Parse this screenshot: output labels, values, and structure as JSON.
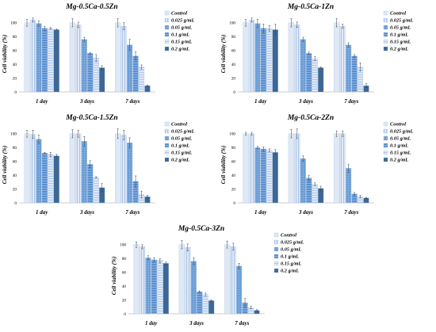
{
  "figure": {
    "series_names": [
      "Control",
      "0.025 g/mL",
      "0.05 g/mL",
      "0.1 g/mL",
      "0.15 g/mL",
      "0.2 g/mL"
    ],
    "series_colors": [
      "#dfe8f5",
      "#dfe8f5",
      "#6e9fd6",
      "#5b8fce",
      "#dfe8f5",
      "#3c6796"
    ],
    "series_patterns": [
      "solid",
      "vstripe",
      "dots",
      "hstripe",
      "hstripe",
      "solid"
    ],
    "error_bar_color": "#404040",
    "axis_color": "#bfbfbf"
  },
  "chart_data": [
    {
      "type": "bar",
      "title": "Mg-0.5Ca-0.5Zn",
      "ylabel": "Cell viability (%)",
      "yticks": [
        "0",
        "20",
        "40",
        "60",
        "80",
        "100"
      ],
      "ylim": [
        0,
        110
      ],
      "categories": [
        "1 day",
        "3 days",
        "7 days"
      ],
      "series": [
        {
          "name": "Control",
          "values": [
            100,
            100,
            100
          ],
          "errors": [
            5,
            6,
            6
          ]
        },
        {
          "name": "0.025 g/mL",
          "values": [
            104,
            97,
            95
          ],
          "errors": [
            3,
            4,
            5
          ]
        },
        {
          "name": "0.05 g/mL",
          "values": [
            99,
            76,
            68
          ],
          "errors": [
            4,
            3,
            8
          ]
        },
        {
          "name": "0.1 g/mL",
          "values": [
            92,
            56,
            52
          ],
          "errors": [
            3,
            1,
            6
          ]
        },
        {
          "name": "0.15 g/mL",
          "values": [
            92,
            49,
            36
          ],
          "errors": [
            1,
            5,
            3
          ]
        },
        {
          "name": "0.2 g/mL",
          "values": [
            90,
            35,
            9
          ],
          "errors": [
            1,
            3,
            1
          ]
        }
      ]
    },
    {
      "type": "bar",
      "title": "Mg-0.5Ca-1Zn",
      "ylabel": "Cell viability (%)",
      "yticks": [
        "0",
        "20",
        "40",
        "60",
        "80",
        "100"
      ],
      "ylim": [
        0,
        110
      ],
      "categories": [
        "1 day",
        "3 days",
        "7 days"
      ],
      "series": [
        {
          "name": "Control",
          "values": [
            100,
            100,
            100
          ],
          "errors": [
            5,
            6,
            6
          ]
        },
        {
          "name": "0.025 g/mL",
          "values": [
            104,
            97,
            95
          ],
          "errors": [
            3,
            4,
            3
          ]
        },
        {
          "name": "0.05 g/mL",
          "values": [
            99,
            76,
            68
          ],
          "errors": [
            6,
            3,
            3
          ]
        },
        {
          "name": "0.1 g/mL",
          "values": [
            92,
            56,
            52
          ],
          "errors": [
            6,
            2,
            2
          ]
        },
        {
          "name": "0.15 g/mL",
          "values": [
            92,
            48,
            36
          ],
          "errors": [
            4,
            3,
            6
          ]
        },
        {
          "name": "0.2 g/mL",
          "values": [
            90,
            35,
            9
          ],
          "errors": [
            8,
            1,
            3
          ]
        }
      ]
    },
    {
      "type": "bar",
      "title": "Mg-0.5Ca-1.5Zn",
      "ylabel": "Cell viability (%)",
      "yticks": [
        "0",
        "20",
        "40",
        "60",
        "80",
        "100"
      ],
      "ylim": [
        0,
        110
      ],
      "categories": [
        "1 day",
        "3 days",
        "7 days"
      ],
      "series": [
        {
          "name": "Control",
          "values": [
            100,
            100,
            100
          ],
          "errors": [
            5,
            6,
            7
          ]
        },
        {
          "name": "0.025 g/mL",
          "values": [
            99,
            100,
            98
          ],
          "errors": [
            6,
            5,
            7
          ]
        },
        {
          "name": "0.05 g/mL",
          "values": [
            92,
            89,
            87
          ],
          "errors": [
            6,
            7,
            7
          ]
        },
        {
          "name": "0.1 g/mL",
          "values": [
            72,
            56,
            31
          ],
          "errors": [
            1,
            5,
            8
          ]
        },
        {
          "name": "0.15 g/mL",
          "values": [
            70,
            37,
            12
          ],
          "errors": [
            3,
            1,
            5
          ]
        },
        {
          "name": "0.2 g/mL",
          "values": [
            68,
            22,
            9
          ],
          "errors": [
            2,
            6,
            2
          ]
        }
      ]
    },
    {
      "type": "bar",
      "title": "Mg-0.5Ca-2Zn",
      "ylabel": "Cell viability (%)",
      "yticks": [
        "0",
        "20",
        "40",
        "60",
        "80",
        "100"
      ],
      "ylim": [
        0,
        110
      ],
      "categories": [
        "1 day",
        "3 days",
        "7 days"
      ],
      "series": [
        {
          "name": "Control",
          "values": [
            100,
            100,
            100
          ],
          "errors": [
            2,
            6,
            4
          ]
        },
        {
          "name": "0.025 g/mL",
          "values": [
            100,
            100,
            100
          ],
          "errors": [
            2,
            7,
            4
          ]
        },
        {
          "name": "0.05 g/mL",
          "values": [
            80,
            64,
            50
          ],
          "errors": [
            2,
            4,
            6
          ]
        },
        {
          "name": "0.1 g/mL",
          "values": [
            78,
            36,
            13
          ],
          "errors": [
            3,
            4,
            2
          ]
        },
        {
          "name": "0.15 g/mL",
          "values": [
            76,
            27,
            9
          ],
          "errors": [
            2,
            2,
            2
          ]
        },
        {
          "name": "0.2 g/mL",
          "values": [
            73,
            21,
            7
          ],
          "errors": [
            4,
            3,
            1
          ]
        }
      ]
    },
    {
      "type": "bar",
      "title": "Mg-0.5Ca-3Zn",
      "ylabel": "Cell viability (%)",
      "yticks": [
        "0",
        "20",
        "40",
        "60",
        "80",
        "100"
      ],
      "ylim": [
        0,
        110
      ],
      "categories": [
        "1 day",
        "3 days",
        "7 days"
      ],
      "series": [
        {
          "name": "Control",
          "values": [
            100,
            100,
            100
          ],
          "errors": [
            4,
            6,
            5
          ]
        },
        {
          "name": "0.025 g/mL",
          "values": [
            97,
            96,
            97
          ],
          "errors": [
            3,
            5,
            5
          ]
        },
        {
          "name": "0.05 g/mL",
          "values": [
            81,
            76,
            69
          ],
          "errors": [
            3,
            5,
            4
          ]
        },
        {
          "name": "0.1 g/mL",
          "values": [
            78,
            32,
            16
          ],
          "errors": [
            3,
            1,
            6
          ]
        },
        {
          "name": "0.15 g/mL",
          "values": [
            77,
            28,
            9
          ],
          "errors": [
            3,
            2,
            2
          ]
        },
        {
          "name": "0.2 g/mL",
          "values": [
            73,
            19,
            5
          ],
          "errors": [
            2,
            1,
            1
          ]
        }
      ]
    }
  ]
}
